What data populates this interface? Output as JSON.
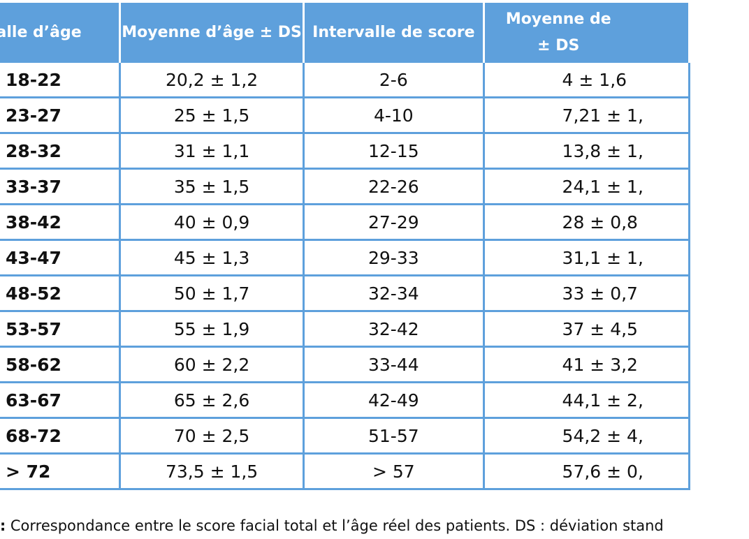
{
  "table": {
    "headers": [
      "rvalle d’âge",
      "Moyenne d’âge ± DS",
      "Intervalle de score",
      "Moyenne de\n± DS"
    ],
    "rows": [
      [
        "18-22",
        "20,2 ± 1,2",
        "2-6",
        "4 ± 1,6"
      ],
      [
        "23-27",
        "25 ± 1,5",
        "4-10",
        "7,21 ± 1,"
      ],
      [
        "28-32",
        "31 ± 1,1",
        "12-15",
        "13,8 ± 1,"
      ],
      [
        "33-37",
        "35 ± 1,5",
        "22-26",
        "24,1 ± 1,"
      ],
      [
        "38-42",
        "40 ± 0,9",
        "27-29",
        "28 ± 0,8"
      ],
      [
        "43-47",
        "45 ± 1,3",
        "29-33",
        "31,1 ± 1,"
      ],
      [
        "48-52",
        "50 ± 1,7",
        "32-34",
        "33 ± 0,7"
      ],
      [
        "53-57",
        "55 ± 1,9",
        "32-42",
        "37 ± 4,5"
      ],
      [
        "58-62",
        "60 ± 2,2",
        "33-44",
        "41 ± 3,2"
      ],
      [
        "63-67",
        "65 ± 2,6",
        "42-49",
        "44,1 ± 2,"
      ],
      [
        "68-72",
        "70 ± 2,5",
        "51-57",
        "54,2 ± 4,"
      ],
      [
        "> 72",
        "73,5 ± 1,5",
        "> 57",
        "57,6 ± 0,"
      ]
    ]
  },
  "caption": {
    "label": "I:",
    "text": " Correspondance entre le score facial total et l’âge réel des patients. DS : déviation stand"
  },
  "colors": {
    "header_background": "#5ea0dc",
    "header_text": "#ffffff",
    "border": "#5ea0dc"
  }
}
